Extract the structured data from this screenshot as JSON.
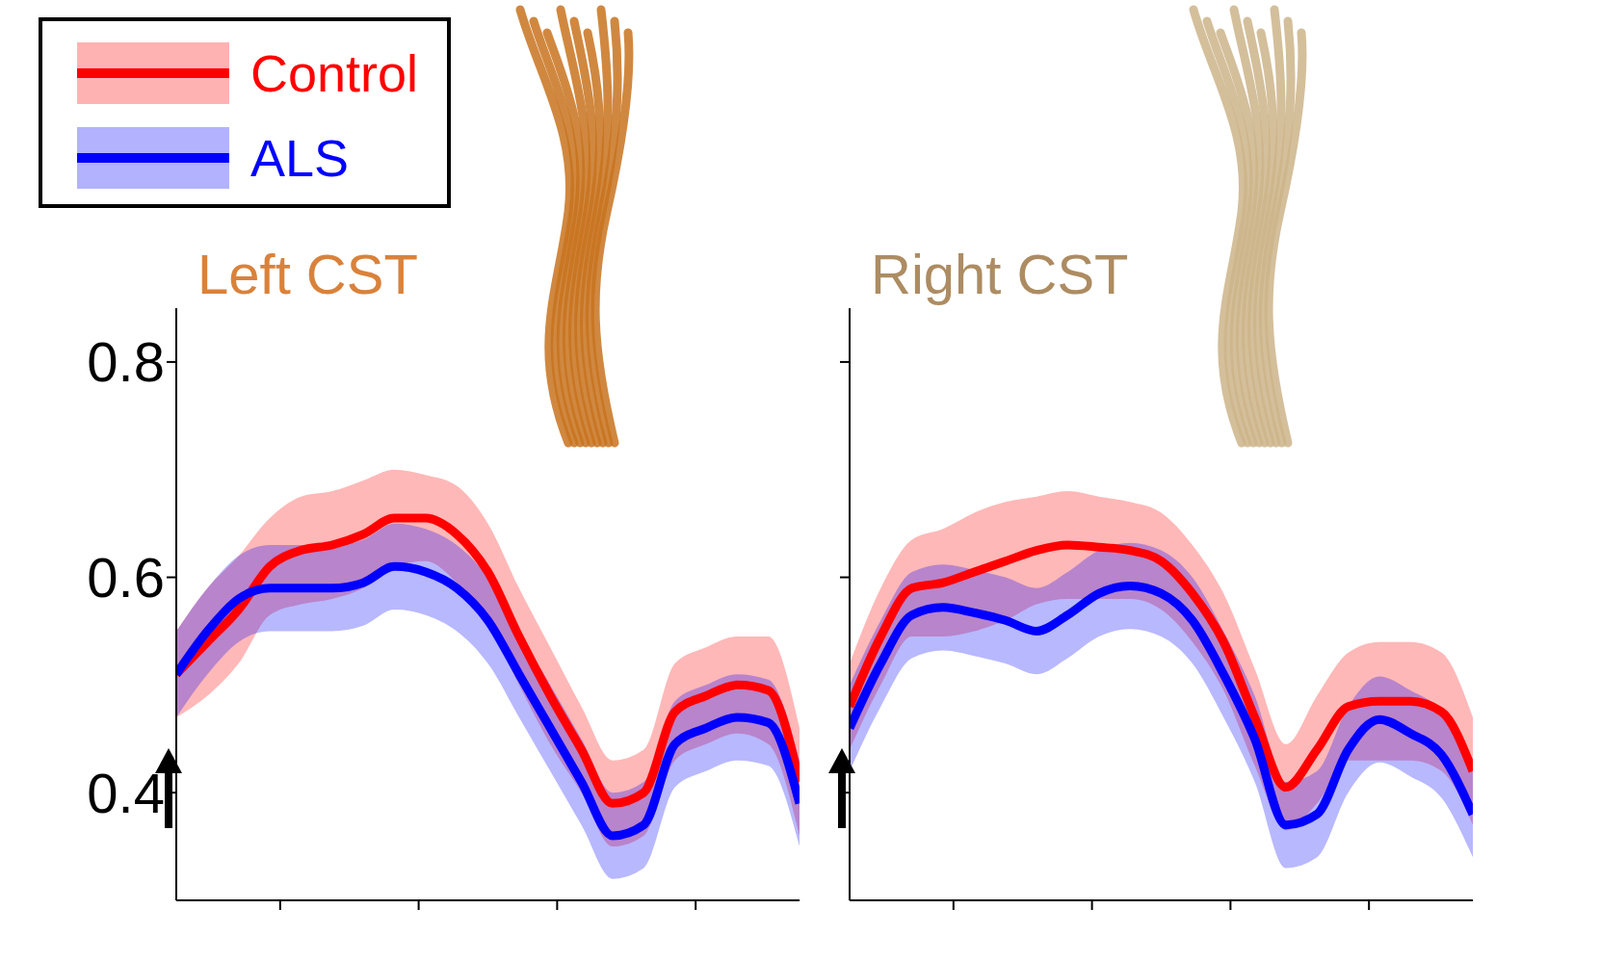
{
  "chart_data": [
    {
      "type": "line",
      "title": "Left CST",
      "legend": "top-left",
      "tick_labels": "y",
      "x": [
        5,
        9.5,
        14,
        18.5,
        23,
        27.5,
        32,
        36.5,
        41,
        45.5,
        50,
        54.5,
        59,
        63.5,
        68,
        72.5,
        77,
        81.5,
        86,
        90.5,
        95
      ],
      "xlim": [
        5,
        95
      ],
      "xticks": [
        20,
        40,
        60,
        80
      ],
      "ylim": [
        0.3,
        0.85
      ],
      "yticks": [
        0.4,
        0.6,
        0.8
      ],
      "series": [
        {
          "name": "Control",
          "color": "#ff0000",
          "values": [
            0.51,
            0.54,
            0.57,
            0.61,
            0.625,
            0.63,
            0.64,
            0.655,
            0.655,
            0.64,
            0.605,
            0.545,
            0.49,
            0.44,
            0.39,
            0.4,
            0.475,
            0.49,
            0.5,
            0.495,
            0.41
          ],
          "upper": [
            0.55,
            0.59,
            0.62,
            0.655,
            0.675,
            0.68,
            0.69,
            0.7,
            0.695,
            0.685,
            0.65,
            0.59,
            0.535,
            0.48,
            0.43,
            0.44,
            0.52,
            0.535,
            0.545,
            0.545,
            0.46
          ],
          "lower": [
            0.47,
            0.49,
            0.52,
            0.565,
            0.575,
            0.58,
            0.59,
            0.61,
            0.615,
            0.595,
            0.56,
            0.5,
            0.445,
            0.4,
            0.35,
            0.36,
            0.43,
            0.445,
            0.455,
            0.445,
            0.36
          ]
        },
        {
          "name": "ALS",
          "color": "#0000ff",
          "values": [
            0.51,
            0.55,
            0.58,
            0.59,
            0.59,
            0.59,
            0.595,
            0.61,
            0.605,
            0.59,
            0.56,
            0.51,
            0.46,
            0.41,
            0.36,
            0.37,
            0.445,
            0.46,
            0.47,
            0.465,
            0.39
          ],
          "upper": [
            0.55,
            0.59,
            0.62,
            0.63,
            0.63,
            0.63,
            0.635,
            0.65,
            0.645,
            0.63,
            0.6,
            0.55,
            0.5,
            0.45,
            0.4,
            0.41,
            0.485,
            0.5,
            0.51,
            0.505,
            0.43
          ],
          "lower": [
            0.47,
            0.51,
            0.54,
            0.55,
            0.55,
            0.55,
            0.555,
            0.57,
            0.565,
            0.55,
            0.52,
            0.47,
            0.42,
            0.37,
            0.32,
            0.33,
            0.405,
            0.42,
            0.43,
            0.425,
            0.35
          ]
        }
      ]
    },
    {
      "type": "line",
      "title": "Right CST",
      "tick_labels": false,
      "x": [
        5,
        9.5,
        14,
        18.5,
        23,
        27.5,
        32,
        36.5,
        41,
        45.5,
        50,
        54.5,
        59,
        63.5,
        68,
        72.5,
        77,
        81.5,
        86,
        90.5,
        95
      ],
      "xlim": [
        5,
        95
      ],
      "xticks": [
        20,
        40,
        60,
        80
      ],
      "ylim": [
        0.3,
        0.85
      ],
      "yticks": [
        0.4,
        0.6,
        0.8
      ],
      "series": [
        {
          "name": "Control",
          "color": "#ff0000",
          "values": [
            0.48,
            0.545,
            0.59,
            0.595,
            0.605,
            0.615,
            0.625,
            0.63,
            0.628,
            0.625,
            0.615,
            0.585,
            0.54,
            0.47,
            0.405,
            0.44,
            0.48,
            0.485,
            0.485,
            0.475,
            0.42
          ],
          "upper": [
            0.52,
            0.59,
            0.635,
            0.645,
            0.66,
            0.67,
            0.675,
            0.68,
            0.675,
            0.67,
            0.66,
            0.63,
            0.585,
            0.515,
            0.445,
            0.49,
            0.53,
            0.54,
            0.54,
            0.53,
            0.47
          ],
          "lower": [
            0.44,
            0.5,
            0.545,
            0.545,
            0.55,
            0.56,
            0.575,
            0.58,
            0.58,
            0.58,
            0.57,
            0.54,
            0.495,
            0.425,
            0.365,
            0.39,
            0.43,
            0.43,
            0.43,
            0.42,
            0.37
          ]
        },
        {
          "name": "ALS",
          "color": "#0000ff",
          "values": [
            0.46,
            0.52,
            0.565,
            0.572,
            0.567,
            0.56,
            0.55,
            0.565,
            0.585,
            0.592,
            0.585,
            0.56,
            0.51,
            0.45,
            0.37,
            0.38,
            0.44,
            0.468,
            0.455,
            0.435,
            0.38
          ],
          "upper": [
            0.5,
            0.56,
            0.605,
            0.612,
            0.607,
            0.6,
            0.59,
            0.605,
            0.625,
            0.632,
            0.625,
            0.6,
            0.55,
            0.49,
            0.41,
            0.42,
            0.48,
            0.508,
            0.495,
            0.475,
            0.42
          ],
          "lower": [
            0.42,
            0.48,
            0.525,
            0.532,
            0.527,
            0.52,
            0.51,
            0.525,
            0.545,
            0.552,
            0.545,
            0.52,
            0.47,
            0.41,
            0.33,
            0.34,
            0.4,
            0.428,
            0.415,
            0.395,
            0.34
          ]
        }
      ]
    }
  ]
}
